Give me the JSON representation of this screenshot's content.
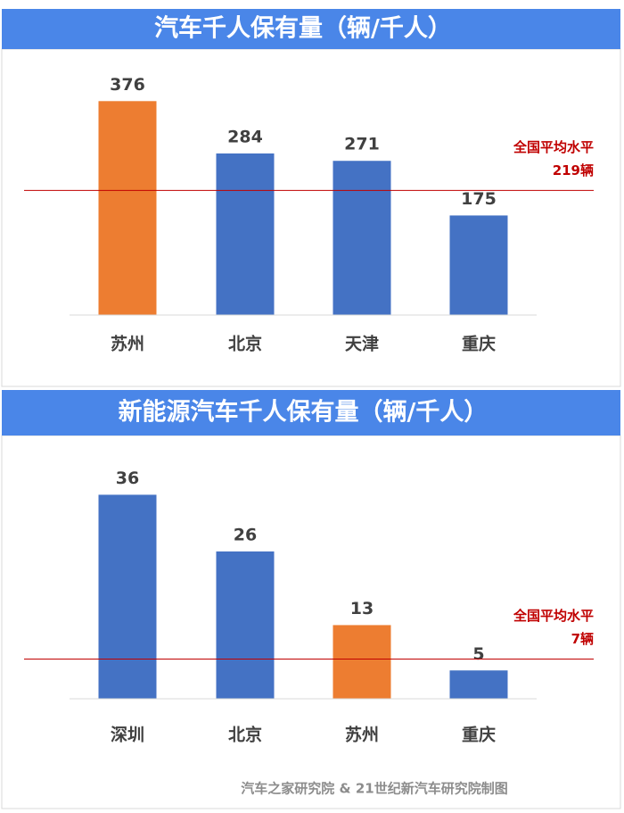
{
  "chart_data": [
    {
      "type": "bar",
      "title": "汽车千人保有量（辆/千人）",
      "categories": [
        "苏州",
        "北京",
        "天津",
        "重庆"
      ],
      "values": [
        376,
        284,
        271,
        175
      ],
      "colors": [
        "#ed7d31",
        "#4472c4",
        "#4472c4",
        "#4472c4"
      ],
      "ylim": [
        0,
        400
      ],
      "reference_line": {
        "value": 219,
        "text": "全国平均水平",
        "label": "219辆",
        "color": "#c00000"
      }
    },
    {
      "type": "bar",
      "title": "新能源汽车千人保有量（辆/千人）",
      "categories": [
        "深圳",
        "北京",
        "苏州",
        "重庆"
      ],
      "values": [
        36,
        26,
        13,
        5
      ],
      "colors": [
        "#4472c4",
        "#4472c4",
        "#ed7d31",
        "#4472c4"
      ],
      "ylim": [
        0,
        40
      ],
      "reference_line": {
        "value": 7,
        "text": "全国平均水平",
        "label": "7辆",
        "color": "#c00000"
      }
    }
  ],
  "source": "汽车之家研究院 & 21世纪新汽车研究院制图"
}
